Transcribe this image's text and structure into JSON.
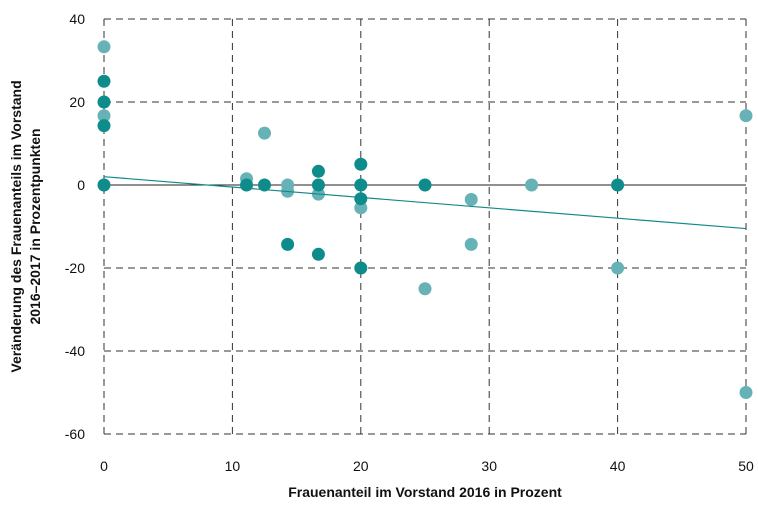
{
  "colors": {
    "dark_points": "#0e8b8b",
    "light_points": "#66b2b6",
    "trend_line": "#138a8a",
    "grid": "#333333"
  },
  "chart_data": {
    "type": "scatter",
    "xlabel": "Frauenanteil im Vorstand 2016 in Prozent",
    "ylabel_lines": [
      "Veränderung des Frauenanteils im Vorstand",
      "2016–2017 in Prozentpunkten"
    ],
    "xlim": [
      0,
      50
    ],
    "ylim": [
      -60,
      40
    ],
    "x_ticks": [
      0,
      10,
      20,
      30,
      40,
      50
    ],
    "y_ticks": [
      40,
      20,
      0,
      -20,
      -40,
      -60
    ],
    "y_tick_labels": [
      "40",
      "20",
      "0",
      "-20",
      "-40",
      "-60"
    ],
    "grid": "dashed",
    "reference_line_y": 0,
    "trend_line": {
      "x": [
        0,
        50
      ],
      "y": [
        2,
        -10.5
      ]
    },
    "series": [
      {
        "color_key": "light_points",
        "points": [
          [
            0,
            33.3
          ],
          [
            0,
            16.7
          ],
          [
            12.5,
            12.5
          ],
          [
            11.1,
            1.5
          ],
          [
            14.3,
            0
          ],
          [
            14.3,
            -1.5
          ],
          [
            16.7,
            -2.2
          ],
          [
            20,
            -5.5
          ],
          [
            25,
            -25
          ],
          [
            28.6,
            -3.5
          ],
          [
            28.6,
            -14.3
          ],
          [
            33.3,
            0
          ],
          [
            40,
            -20
          ],
          [
            50,
            16.7
          ],
          [
            50,
            -50
          ]
        ]
      },
      {
        "color_key": "dark_points",
        "points": [
          [
            0,
            25
          ],
          [
            0,
            20
          ],
          [
            0,
            14.3
          ],
          [
            0,
            0
          ],
          [
            11.1,
            0
          ],
          [
            12.5,
            0
          ],
          [
            14.3,
            -14.3
          ],
          [
            16.7,
            3.3
          ],
          [
            16.7,
            0
          ],
          [
            16.7,
            -16.7
          ],
          [
            20,
            5
          ],
          [
            20,
            0
          ],
          [
            20,
            -3.3
          ],
          [
            20,
            -20
          ],
          [
            25,
            0
          ],
          [
            40,
            0
          ]
        ]
      }
    ]
  }
}
